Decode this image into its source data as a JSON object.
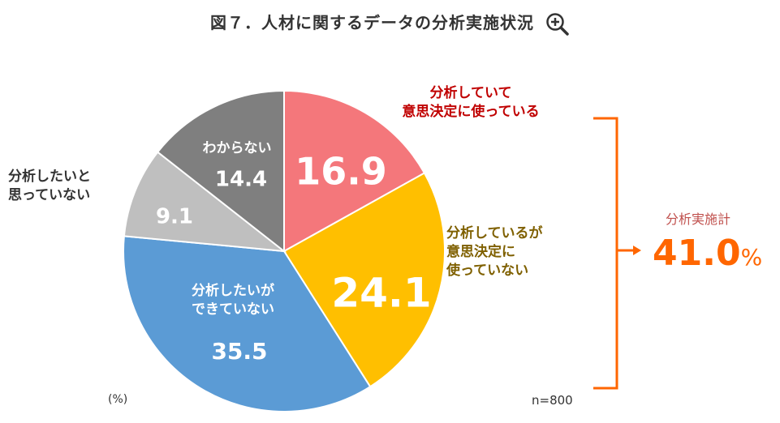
{
  "title": "図７．人材に関するデータの分析実施状況",
  "chart_data": {
    "type": "pie",
    "unit_label": "(%)",
    "sample_size": "n=800",
    "start": "top",
    "direction": "clockwise",
    "slices": [
      {
        "label": "分析していて\n意思決定に使っている",
        "value": 16.9,
        "color": "#f4777b",
        "label_color": "#c00000"
      },
      {
        "label": "分析しているが\n意思決定に\n使っていない",
        "value": 24.1,
        "color": "#ffbf00",
        "label_color": "#7f6000"
      },
      {
        "label": "分析したいが\nできていない",
        "value": 35.5,
        "color": "#5b9bd5",
        "label_color": "#ffffff"
      },
      {
        "label": "分析したいと\n思っていない",
        "value": 9.1,
        "color": "#bfbfbf",
        "label_color": "#333333"
      },
      {
        "label": "わからない",
        "value": 14.4,
        "color": "#7f7f7f",
        "label_color": "#ffffff"
      }
    ],
    "total_annotation": {
      "label": "分析実施計",
      "value": "41.0",
      "unit": "%",
      "color": "#ff6600"
    }
  }
}
